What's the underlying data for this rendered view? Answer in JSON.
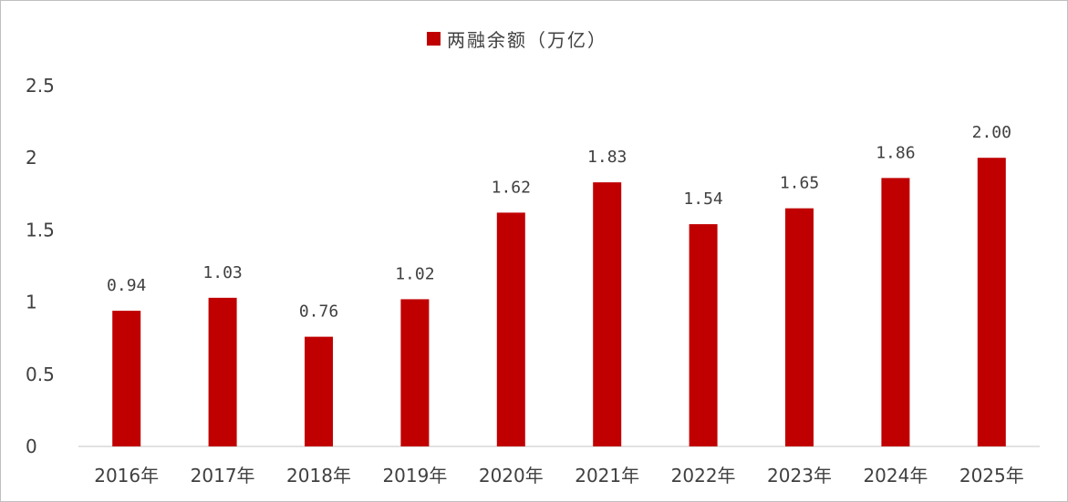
{
  "chart_data": {
    "type": "bar",
    "categories": [
      "2016年",
      "2017年",
      "2018年",
      "2019年",
      "2020年",
      "2021年",
      "2022年",
      "2023年",
      "2024年",
      "2025年"
    ],
    "series": [
      {
        "name": "两融余额（万亿）",
        "values": [
          0.94,
          1.03,
          0.76,
          1.02,
          1.62,
          1.83,
          1.54,
          1.65,
          1.86,
          2.0
        ],
        "data_labels": [
          "0.94",
          "1.03",
          "0.76",
          "1.02",
          "1.62",
          "1.83",
          "1.54",
          "1.65",
          "1.86",
          "2.00"
        ],
        "color": "#c00000"
      }
    ],
    "ylim": [
      0,
      2.5
    ],
    "yticks": [
      "0",
      "0.5",
      "1",
      "1.5",
      "2",
      "2.5"
    ],
    "grid": false,
    "legend_position": "top-center",
    "title": "",
    "xlabel": "",
    "ylabel": ""
  }
}
